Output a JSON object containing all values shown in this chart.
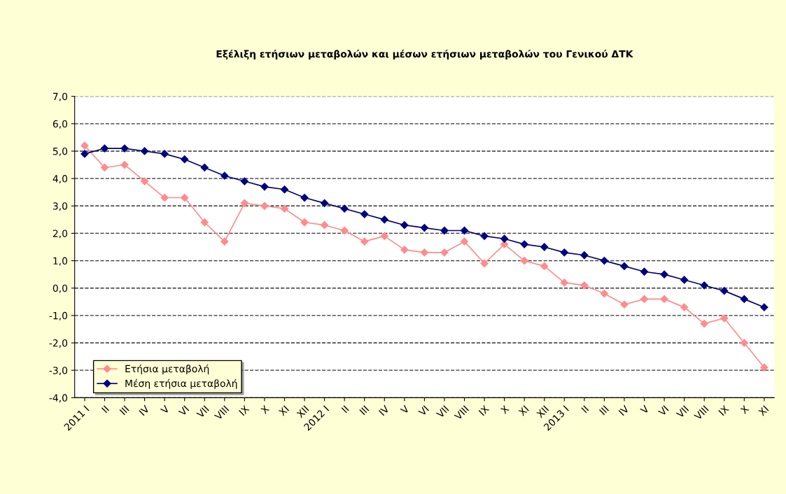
{
  "chart_data": {
    "type": "line",
    "title": "Εξέλιξη ετήσιων μεταβολών και μέσων ετήσιων μεταβολών του Γενικού ΔΤΚ",
    "categories": [
      "2011 I",
      "II",
      "III",
      "IV",
      "V",
      "VI",
      "VII",
      "VIII",
      "IX",
      "X",
      "XI",
      "XII",
      "2012 I",
      "II",
      "III",
      "IV",
      "V",
      "VI",
      "VII",
      "VIII",
      "IX",
      "X",
      "XI",
      "XII",
      "2013 I",
      "II",
      "III",
      "IV",
      "V",
      "VI",
      "VII",
      "VIII",
      "IX",
      "X",
      "XI"
    ],
    "series": [
      {
        "name": "Ετήσια μεταβολή",
        "color": "#ff8c8c",
        "values": [
          5.2,
          4.4,
          4.5,
          3.9,
          3.3,
          3.3,
          2.4,
          1.7,
          3.1,
          3.0,
          2.9,
          2.4,
          2.3,
          2.1,
          1.7,
          1.9,
          1.4,
          1.3,
          1.3,
          1.7,
          0.9,
          1.6,
          1.0,
          0.8,
          0.2,
          0.1,
          -0.2,
          -0.6,
          -0.4,
          -0.4,
          -0.7,
          -1.3,
          -1.1,
          -2.0,
          -2.9
        ]
      },
      {
        "name": "Μέση ετήσια μεταβολή",
        "color": "#000080",
        "values": [
          4.9,
          5.1,
          5.1,
          5.0,
          4.9,
          4.7,
          4.4,
          4.1,
          3.9,
          3.7,
          3.6,
          3.3,
          3.1,
          2.9,
          2.7,
          2.5,
          2.3,
          2.2,
          2.1,
          2.1,
          1.9,
          1.8,
          1.6,
          1.5,
          1.3,
          1.2,
          1.0,
          0.8,
          0.6,
          0.5,
          0.3,
          0.1,
          -0.1,
          -0.4,
          -0.7
        ]
      }
    ],
    "ylim": [
      -4,
      7
    ],
    "yticks": [
      {
        "value": -4,
        "label": "-4,0"
      },
      {
        "value": -3,
        "label": "-3,0"
      },
      {
        "value": -2,
        "label": "-2,0"
      },
      {
        "value": -1,
        "label": "-1,0"
      },
      {
        "value": 0,
        "label": "0,0"
      },
      {
        "value": 1,
        "label": "1,0"
      },
      {
        "value": 2,
        "label": "2,0"
      },
      {
        "value": 3,
        "label": "3,0"
      },
      {
        "value": 4,
        "label": "4,0"
      },
      {
        "value": 5,
        "label": "5,0"
      },
      {
        "value": 6,
        "label": "6,0"
      },
      {
        "value": 7,
        "label": "7,0"
      }
    ],
    "grid": "y",
    "legend": "bottom left",
    "marker": "diamond",
    "line_style": "solid"
  }
}
